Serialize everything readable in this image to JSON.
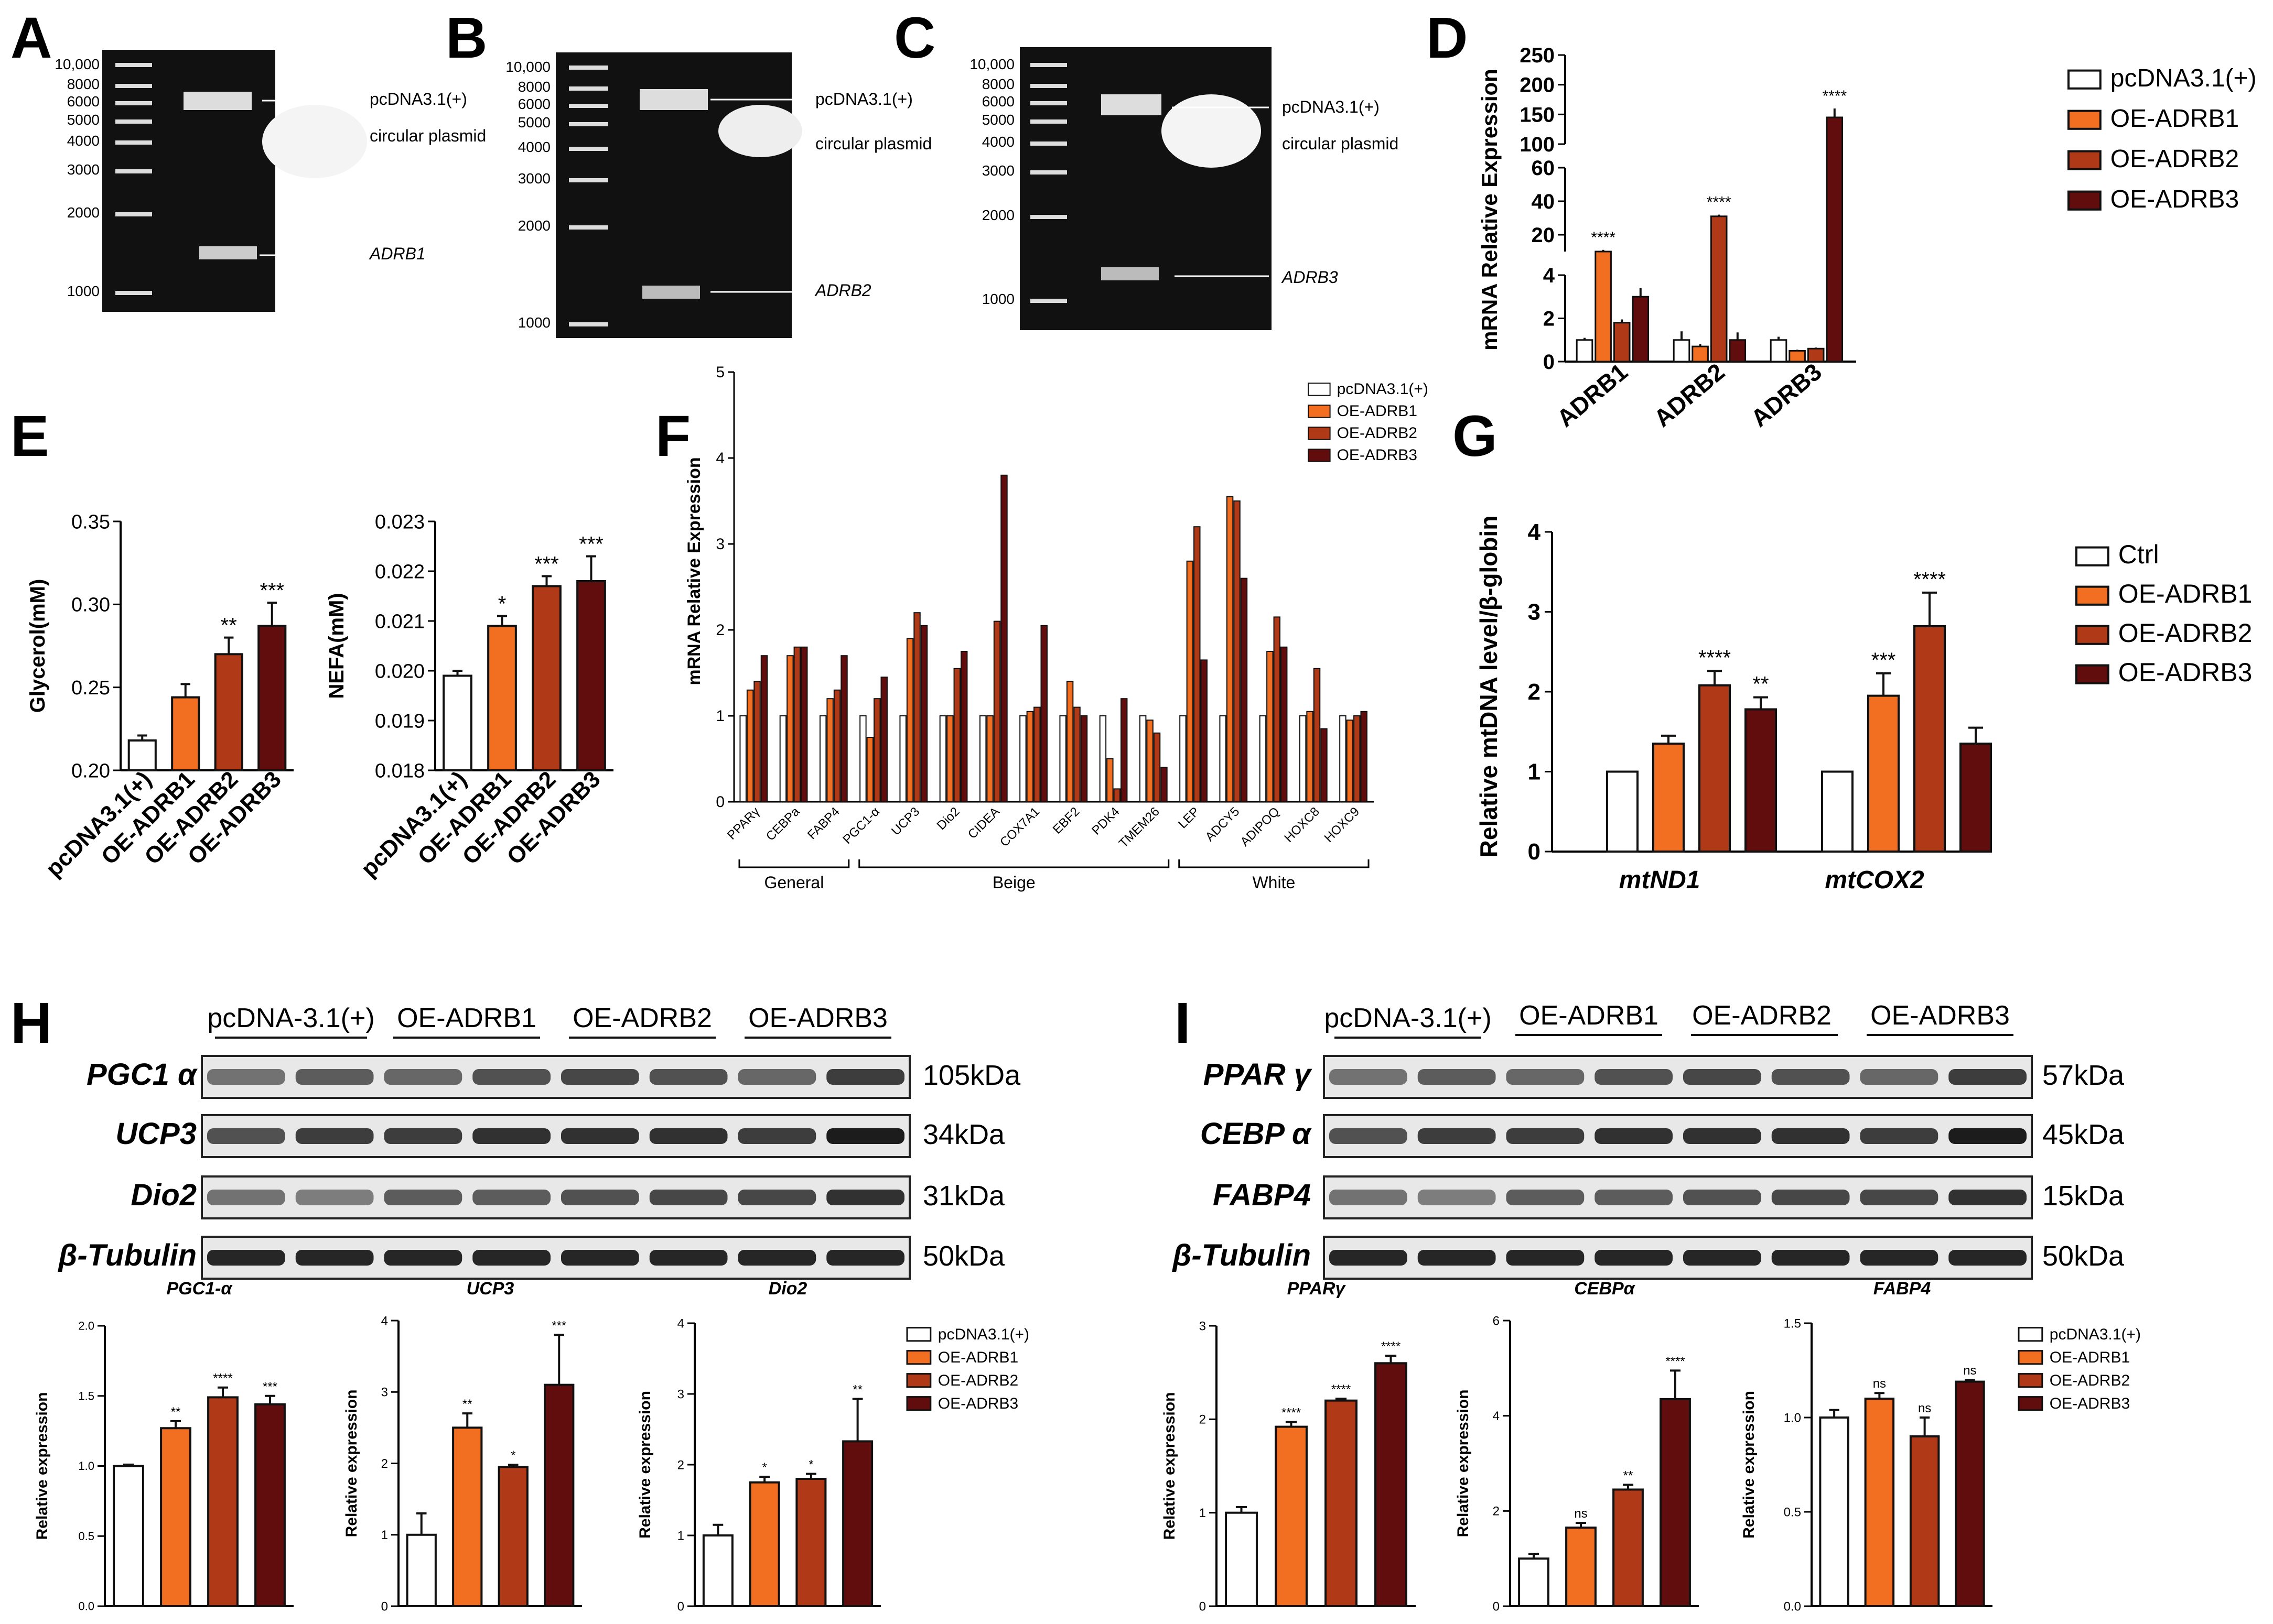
{
  "colors": {
    "white": "#ffffff",
    "orange": "#f26f21",
    "red": "#b03a17",
    "darkred": "#620d0d",
    "stroke": "#111111"
  },
  "panels": {
    "A": {
      "letter": "A",
      "markers": [
        "10,000",
        "8000",
        "6000",
        "5000",
        "4000",
        "3000",
        "2000",
        "1000"
      ],
      "label_vector": "pcDNA3.1(+)",
      "label_circular": "circular plasmid",
      "label_gene": "ADRB1"
    },
    "B": {
      "letter": "B",
      "markers": [
        "10,000",
        "8000",
        "6000",
        "5000",
        "4000",
        "3000",
        "2000",
        "1000"
      ],
      "label_vector": "pcDNA3.1(+)",
      "label_circular": "circular plasmid",
      "label_gene": "ADRB2"
    },
    "C": {
      "letter": "C",
      "markers": [
        "10,000",
        "8000",
        "6000",
        "5000",
        "4000",
        "3000",
        "2000",
        "1000"
      ],
      "label_vector": "pcDNA3.1(+)",
      "label_circular": "circular plasmid",
      "label_gene": "ADRB3"
    },
    "D": {
      "letter": "D"
    },
    "E": {
      "letter": "E"
    },
    "F": {
      "letter": "F"
    },
    "G": {
      "letter": "G"
    },
    "H": {
      "letter": "H"
    },
    "I": {
      "letter": "I"
    }
  },
  "western_H": {
    "groups": [
      "pcDNA-3.1(+)",
      "OE-ADRB1",
      "OE-ADRB2",
      "OE-ADRB3"
    ],
    "proteins": [
      "PGC1 α",
      "UCP3",
      "Dio2",
      "β-Tubulin"
    ],
    "kda": [
      "105kDa",
      "34kDa",
      "31kDa",
      "50kDa"
    ]
  },
  "western_I": {
    "groups": [
      "pcDNA-3.1(+)",
      "OE-ADRB1",
      "OE-ADRB2",
      "OE-ADRB3"
    ],
    "proteins": [
      "PPAR γ",
      "CEBP α",
      "FABP4",
      "β-Tubulin"
    ],
    "kda": [
      "57kDa",
      "45kDa",
      "15kDa",
      "50kDa"
    ]
  },
  "chart_data": [
    {
      "id": "D",
      "type": "bar",
      "title": "",
      "ylabel": "mRNA Relative Expression",
      "categories": [
        "ADRB1",
        "ADRB2",
        "ADRB3"
      ],
      "legend": [
        "pcDNA3.1(+)",
        "OE-ADRB1",
        "OE-ADRB2",
        "OE-ADRB3"
      ],
      "yticks": [
        "0",
        "2",
        "4",
        "20",
        "40",
        "60",
        "100",
        "150",
        "200",
        "250"
      ],
      "series": [
        {
          "name": "pcDNA3.1(+)",
          "values": [
            1.0,
            1.0,
            1.0
          ],
          "err": [
            0.1,
            0.4,
            0.15
          ]
        },
        {
          "name": "OE-ADRB1",
          "values": [
            10,
            0.7,
            0.5
          ],
          "err": [
            1,
            0.1,
            0.05
          ]
        },
        {
          "name": "OE-ADRB2",
          "values": [
            1.8,
            31,
            0.6
          ],
          "err": [
            0.15,
            1,
            0.05
          ]
        },
        {
          "name": "OE-ADRB3",
          "values": [
            3.0,
            1.0,
            145
          ],
          "err": [
            0.4,
            0.35,
            15
          ]
        }
      ],
      "sig": [
        "****",
        "****",
        "****"
      ]
    },
    {
      "id": "E1",
      "type": "bar",
      "ylabel": "Glycerol(mM)",
      "categories": [
        "pcDNA3.1(+)",
        "OE-ADRB1",
        "OE-ADRB2",
        "OE-ADRB3"
      ],
      "values": [
        0.218,
        0.244,
        0.27,
        0.287
      ],
      "err": [
        0.003,
        0.008,
        0.01,
        0.014
      ],
      "ylim": [
        0.2,
        0.35
      ],
      "yticks": [
        "0.20",
        "0.25",
        "0.30",
        "0.35"
      ],
      "sig": [
        "",
        "",
        "**",
        "***"
      ]
    },
    {
      "id": "E2",
      "type": "bar",
      "ylabel": "NEFA(mM)",
      "categories": [
        "pcDNA3.1(+)",
        "OE-ADRB1",
        "OE-ADRB2",
        "OE-ADRB3"
      ],
      "values": [
        0.0199,
        0.0209,
        0.0217,
        0.0218
      ],
      "err": [
        0.0001,
        0.0002,
        0.0002,
        0.0005
      ],
      "ylim": [
        0.018,
        0.023
      ],
      "yticks": [
        "0.018",
        "0.019",
        "0.020",
        "0.021",
        "0.022",
        "0.023"
      ],
      "sig": [
        "",
        "*",
        "***",
        "***"
      ]
    },
    {
      "id": "F",
      "type": "bar",
      "ylabel": "mRNA Relative Expression",
      "ylim": [
        0,
        5
      ],
      "yticks": [
        "0",
        "1",
        "2",
        "3",
        "4",
        "5"
      ],
      "categories": [
        "PPARγ",
        "CEBPa",
        "FABP4",
        "PGC1-α",
        "UCP3",
        "Dio2",
        "CIDEA",
        "COX7A1",
        "EBF2",
        "PDK4",
        "TMEM26",
        "LEP",
        "ADCY5",
        "ADIPOQ",
        "HOXC8",
        "HOXC9"
      ],
      "groups": [
        "General",
        "Beige",
        "White"
      ],
      "legend": [
        "pcDNA3.1(+)",
        "OE-ADRB1",
        "OE-ADRB2",
        "OE-ADRB3"
      ],
      "series": [
        {
          "name": "pcDNA3.1(+)",
          "values": [
            1,
            1,
            1,
            1,
            1,
            1,
            1,
            1,
            1,
            1,
            1,
            1,
            1,
            1,
            1,
            1
          ]
        },
        {
          "name": "OE-ADRB1",
          "values": [
            1.3,
            1.7,
            1.2,
            0.75,
            1.9,
            1.0,
            1.0,
            1.05,
            1.4,
            0.5,
            0.95,
            2.8,
            3.55,
            1.75,
            1.05,
            0.95
          ]
        },
        {
          "name": "OE-ADRB2",
          "values": [
            1.4,
            1.8,
            1.3,
            1.2,
            2.2,
            1.55,
            2.1,
            1.1,
            1.1,
            0.15,
            0.8,
            3.2,
            3.5,
            2.15,
            1.55,
            1.0
          ]
        },
        {
          "name": "OE-ADRB3",
          "values": [
            1.7,
            1.8,
            1.7,
            1.45,
            2.05,
            1.75,
            3.8,
            2.05,
            1.0,
            1.2,
            0.4,
            1.65,
            2.6,
            1.8,
            0.85,
            1.05
          ]
        }
      ]
    },
    {
      "id": "G",
      "type": "bar",
      "ylabel": "Relative mtDNA level/β-globin",
      "ylim": [
        0,
        4
      ],
      "yticks": [
        "0",
        "1",
        "2",
        "3",
        "4"
      ],
      "categories": [
        "mtND1",
        "mtCOX2"
      ],
      "legend": [
        "Ctrl",
        "OE-ADRB1",
        "OE-ADRB2",
        "OE-ADRB3"
      ],
      "series": [
        {
          "name": "Ctrl",
          "values": [
            1,
            1
          ]
        },
        {
          "name": "OE-ADRB1",
          "values": [
            1.35,
            1.95
          ]
        },
        {
          "name": "OE-ADRB2",
          "values": [
            2.08,
            2.82
          ]
        },
        {
          "name": "OE-ADRB3",
          "values": [
            1.78,
            1.35
          ]
        }
      ],
      "err": [
        [
          0,
          0
        ],
        [
          0.1,
          0.28
        ],
        [
          0.18,
          0.42
        ],
        [
          0.15,
          0.2
        ]
      ],
      "sig": [
        [
          "",
          "",
          "****",
          "**"
        ],
        [
          "",
          "***",
          "****",
          ""
        ]
      ]
    },
    {
      "id": "H1",
      "type": "bar",
      "title": "PGC1-α",
      "ylabel": "Relative expression",
      "ylim": [
        0,
        2.0
      ],
      "yticks": [
        "0.0",
        "0.5",
        "1.0",
        "1.5",
        "2.0"
      ],
      "values": [
        1.0,
        1.27,
        1.49,
        1.44
      ],
      "err": [
        0.01,
        0.05,
        0.07,
        0.06
      ],
      "sig": [
        "",
        "**",
        "****",
        "***"
      ]
    },
    {
      "id": "H2",
      "type": "bar",
      "title": "UCP3",
      "ylabel": "Relative expression",
      "ylim": [
        0,
        4
      ],
      "yticks": [
        "0",
        "1",
        "2",
        "3",
        "4"
      ],
      "values": [
        1.0,
        2.5,
        1.95,
        3.1
      ],
      "err": [
        0.3,
        0.2,
        0.03,
        0.7
      ],
      "sig": [
        "",
        "**",
        "*",
        "***"
      ]
    },
    {
      "id": "H3",
      "type": "bar",
      "title": "Dio2",
      "ylabel": "Relative expression",
      "ylim": [
        0,
        4
      ],
      "yticks": [
        "0",
        "1",
        "2",
        "3",
        "4"
      ],
      "values": [
        1.0,
        1.75,
        1.8,
        2.33
      ],
      "err": [
        0.15,
        0.08,
        0.07,
        0.6
      ],
      "sig": [
        "",
        "*",
        "*",
        "**"
      ],
      "legend": [
        "pcDNA3.1(+)",
        "OE-ADRB1",
        "OE-ADRB2",
        "OE-ADRB3"
      ]
    },
    {
      "id": "I1",
      "type": "bar",
      "title": "PPARγ",
      "ylabel": "Relative expression",
      "ylim": [
        0,
        3
      ],
      "yticks": [
        "0",
        "1",
        "2",
        "3"
      ],
      "values": [
        1.0,
        1.92,
        2.2,
        2.6
      ],
      "err": [
        0.06,
        0.05,
        0.02,
        0.08
      ],
      "sig": [
        "",
        "****",
        "****",
        "****"
      ]
    },
    {
      "id": "I2",
      "type": "bar",
      "title": "CEBPα",
      "ylabel": "Relative expression",
      "ylim": [
        0,
        6
      ],
      "yticks": [
        "0",
        "2",
        "4",
        "6"
      ],
      "values": [
        1.0,
        1.65,
        2.45,
        4.35
      ],
      "err": [
        0.1,
        0.1,
        0.1,
        0.6
      ],
      "sig": [
        "",
        "ns",
        "**",
        "****"
      ]
    },
    {
      "id": "I3",
      "type": "bar",
      "title": "FABP4",
      "ylabel": "Relative expression",
      "ylim": [
        0,
        1.5
      ],
      "yticks": [
        "0.0",
        "0.5",
        "1.0",
        "1.5"
      ],
      "values": [
        1.0,
        1.1,
        0.9,
        1.19
      ],
      "err": [
        0.04,
        0.03,
        0.1,
        0.01
      ],
      "sig": [
        "",
        "ns",
        "ns",
        "ns"
      ],
      "legend": [
        "pcDNA3.1(+)",
        "OE-ADRB1",
        "OE-ADRB2",
        "OE-ADRB3"
      ]
    }
  ]
}
